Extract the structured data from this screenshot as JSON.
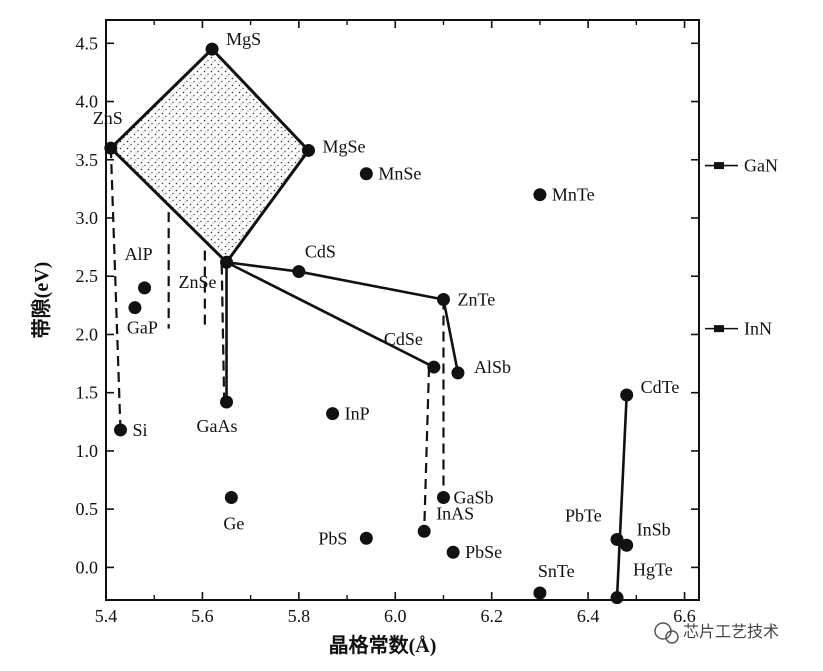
{
  "chart_data": {
    "type": "scatter",
    "title": "",
    "xlabel": "晶格常数(Å)",
    "ylabel": "带隙(eV)",
    "xlim": [
      5.4,
      6.63
    ],
    "ylim": [
      -0.28,
      4.7
    ],
    "x_ticks": [
      5.4,
      5.6,
      5.8,
      6.0,
      6.2,
      6.4,
      6.6
    ],
    "y_ticks": [
      0.0,
      0.5,
      1.0,
      1.5,
      2.0,
      2.5,
      3.0,
      3.5,
      4.0,
      4.5
    ],
    "x_tick_labels": [
      "5.4",
      "5.6",
      "5.8",
      "6.0",
      "6.2",
      "6.4",
      "6.6"
    ],
    "y_tick_labels": [
      "0.0",
      "0.5",
      "1.0",
      "1.5",
      "2.0",
      "2.5",
      "3.0",
      "3.5",
      "4.0",
      "4.5"
    ],
    "grid": false,
    "points": [
      {
        "label": "MgS",
        "x": 5.62,
        "y": 4.45
      },
      {
        "label": "ZnS",
        "x": 5.41,
        "y": 3.6
      },
      {
        "label": "MgSe",
        "x": 5.82,
        "y": 3.58
      },
      {
        "label": "MnSe",
        "x": 5.94,
        "y": 3.38
      },
      {
        "label": "MnTe",
        "x": 6.3,
        "y": 3.2
      },
      {
        "label": "CdS",
        "x": 5.8,
        "y": 2.54
      },
      {
        "label": "ZnSe",
        "x": 5.65,
        "y": 2.62
      },
      {
        "label": "AlP",
        "x": 5.48,
        "y": 2.4
      },
      {
        "label": "GaP",
        "x": 5.46,
        "y": 2.23
      },
      {
        "label": "ZnTe",
        "x": 6.1,
        "y": 2.3
      },
      {
        "label": "CdSe",
        "x": 6.08,
        "y": 1.72
      },
      {
        "label": "AlSb",
        "x": 6.13,
        "y": 1.67
      },
      {
        "label": "CdTe",
        "x": 6.48,
        "y": 1.48
      },
      {
        "label": "GaAs",
        "x": 5.65,
        "y": 1.42
      },
      {
        "label": "InP",
        "x": 5.87,
        "y": 1.32
      },
      {
        "label": "Si",
        "x": 5.43,
        "y": 1.18
      },
      {
        "label": "Ge",
        "x": 5.66,
        "y": 0.6
      },
      {
        "label": "GaSb",
        "x": 6.1,
        "y": 0.6
      },
      {
        "label": "InAS",
        "x": 6.06,
        "y": 0.31
      },
      {
        "label": "PbS",
        "x": 5.94,
        "y": 0.25
      },
      {
        "label": "PbSe",
        "x": 6.12,
        "y": 0.13
      },
      {
        "label": "PbTe",
        "x": 6.46,
        "y": 0.24
      },
      {
        "label": "InSb",
        "x": 6.48,
        "y": 0.19
      },
      {
        "label": "SnTe",
        "x": 6.3,
        "y": -0.22
      },
      {
        "label": "HgTe",
        "x": 6.46,
        "y": -0.26
      }
    ],
    "shaded_region": {
      "vertices": [
        "MgS",
        "MgSe",
        "ZnSe",
        "ZnS"
      ]
    },
    "solid_lines": [
      [
        "ZnSe",
        "CdS",
        "ZnTe"
      ],
      [
        "ZnSe",
        "CdSe"
      ],
      [
        "ZnTe",
        "AlSb"
      ],
      [
        "HgTe",
        "CdTe"
      ],
      [
        "GaAs",
        "ZnSe"
      ]
    ],
    "dashed_lines": [
      [
        {
          "x": 5.41,
          "y": 3.6
        },
        {
          "x": 5.43,
          "y": 1.18
        }
      ],
      [
        {
          "x": 5.53,
          "y": 3.05
        },
        {
          "x": 5.53,
          "y": 2.05
        }
      ],
      [
        {
          "x": 5.605,
          "y": 2.72
        },
        {
          "x": 5.605,
          "y": 2.05
        }
      ],
      [
        {
          "x": 5.64,
          "y": 2.6
        },
        {
          "x": 5.645,
          "y": 1.45
        }
      ],
      [
        {
          "x": 6.07,
          "y": 1.72
        },
        {
          "x": 6.06,
          "y": 0.31
        }
      ],
      [
        {
          "x": 6.1,
          "y": 2.3
        },
        {
          "x": 6.1,
          "y": 0.6
        }
      ]
    ],
    "side_markers": [
      {
        "label": "GaN",
        "y": 3.45
      },
      {
        "label": "InN",
        "y": 2.05
      }
    ]
  },
  "watermark": {
    "text": "芯片工艺技术"
  }
}
